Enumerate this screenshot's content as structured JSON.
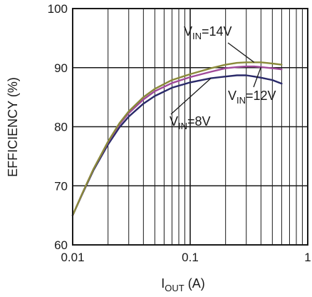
{
  "chart_data": {
    "type": "line",
    "x_scale": "log",
    "xlim": [
      0.01,
      1
    ],
    "ylim": [
      60,
      100
    ],
    "grid": true,
    "xlabel": {
      "main": "I",
      "sub": "OUT",
      "rest": " (A)"
    },
    "ylabel": "EFFICIENCY (%)",
    "x_ticks": [
      "0.01",
      "0.1",
      "1"
    ],
    "y_ticks": [
      "60",
      "70",
      "80",
      "90",
      "100"
    ],
    "series": [
      {
        "label": {
          "main": "V",
          "sub": "IN",
          "rest": "=14V"
        },
        "color": "#8a8a3a",
        "x": [
          0.01,
          0.012,
          0.015,
          0.02,
          0.025,
          0.03,
          0.04,
          0.05,
          0.07,
          0.1,
          0.15,
          0.2,
          0.25,
          0.3,
          0.35,
          0.4,
          0.5,
          0.6
        ],
        "y": [
          65,
          68.6,
          72.8,
          77.5,
          80.6,
          82.6,
          85.0,
          86.4,
          87.9,
          88.9,
          89.9,
          90.5,
          90.8,
          90.9,
          90.9,
          90.9,
          90.7,
          90.5
        ]
      },
      {
        "label": {
          "main": "V",
          "sub": "IN",
          "rest": "=12V"
        },
        "color": "#a04a9a",
        "x": [
          0.01,
          0.012,
          0.015,
          0.02,
          0.025,
          0.03,
          0.04,
          0.05,
          0.07,
          0.1,
          0.15,
          0.2,
          0.25,
          0.3,
          0.35,
          0.4,
          0.5,
          0.6
        ],
        "y": [
          65,
          68.6,
          72.8,
          77.4,
          80.4,
          82.3,
          84.6,
          86.0,
          87.4,
          88.4,
          89.3,
          89.9,
          90.1,
          90.2,
          90.2,
          90.1,
          89.9,
          89.7
        ]
      },
      {
        "label": {
          "main": "V",
          "sub": "IN",
          "rest": "=8V"
        },
        "color": "#2a2a6a",
        "x": [
          0.01,
          0.012,
          0.015,
          0.02,
          0.025,
          0.03,
          0.04,
          0.05,
          0.07,
          0.1,
          0.15,
          0.2,
          0.25,
          0.3,
          0.35,
          0.4,
          0.5,
          0.6
        ],
        "y": [
          65,
          68.5,
          72.6,
          77.0,
          79.9,
          81.7,
          83.9,
          85.2,
          86.6,
          87.5,
          88.2,
          88.5,
          88.7,
          88.7,
          88.5,
          88.3,
          87.9,
          87.3
        ]
      }
    ]
  }
}
